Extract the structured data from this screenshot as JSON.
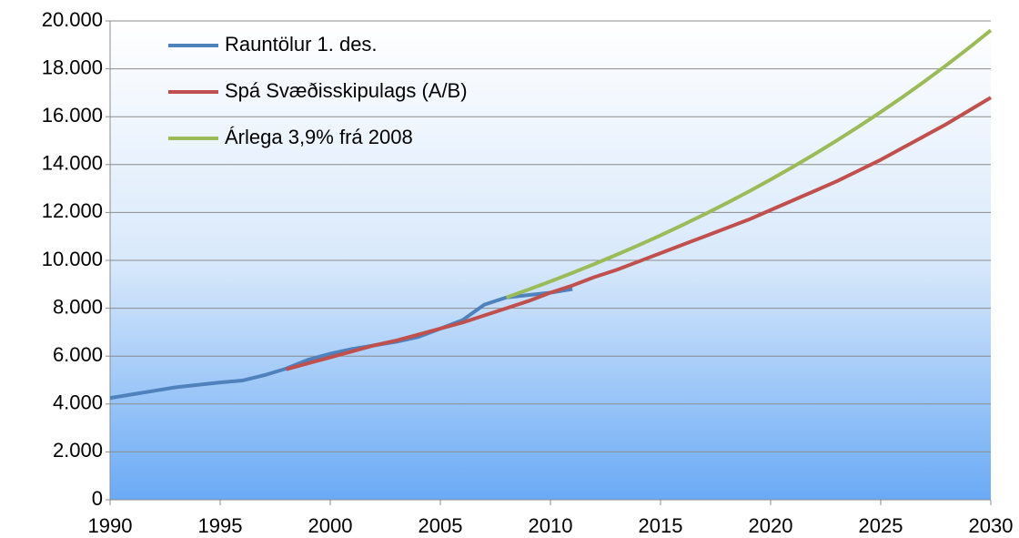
{
  "chart_data": {
    "type": "line",
    "x": [
      1990,
      1991,
      1992,
      1993,
      1994,
      1995,
      1996,
      1997,
      1998,
      1999,
      2000,
      2001,
      2002,
      2003,
      2004,
      2005,
      2006,
      2007,
      2008,
      2009,
      2010,
      2011,
      2012,
      2013,
      2014,
      2015,
      2016,
      2017,
      2018,
      2019,
      2020,
      2021,
      2022,
      2023,
      2024,
      2025,
      2026,
      2027,
      2028,
      2029,
      2030
    ],
    "series": [
      {
        "name": "Rauntölur 1. des.",
        "color": "#4f81bd",
        "values": [
          4250,
          4400,
          4550,
          4700,
          4800,
          4900,
          4980,
          5200,
          5480,
          5850,
          6100,
          6300,
          6450,
          6600,
          6800,
          7150,
          7500,
          8150,
          8450,
          8550,
          8650,
          8800,
          null,
          null,
          null,
          null,
          null,
          null,
          null,
          null,
          null,
          null,
          null,
          null,
          null,
          null,
          null,
          null,
          null,
          null,
          null
        ]
      },
      {
        "name": "Spá Svæðisskipulags (A/B)",
        "color": "#c0504d",
        "values": [
          null,
          null,
          null,
          null,
          null,
          null,
          null,
          null,
          5450,
          5700,
          5950,
          6200,
          6450,
          6650,
          6900,
          7150,
          7400,
          7700,
          8000,
          8300,
          8650,
          8950,
          9300,
          9600,
          9950,
          10300,
          10650,
          11000,
          11350,
          11700,
          12100,
          12500,
          12900,
          13300,
          13750,
          14200,
          14700,
          15200,
          15700,
          16250,
          16800
        ]
      },
      {
        "name": "Árlega 3,9% frá 2008",
        "color": "#9bbb59",
        "values": [
          null,
          null,
          null,
          null,
          null,
          null,
          null,
          null,
          null,
          null,
          null,
          null,
          null,
          null,
          null,
          null,
          null,
          null,
          8450,
          8780,
          9122,
          9478,
          9848,
          10232,
          10631,
          11045,
          11476,
          11924,
          12389,
          12872,
          13374,
          13896,
          14438,
          15001,
          15586,
          16194,
          16825,
          17481,
          18163,
          18871,
          19607
        ]
      }
    ],
    "xlim": [
      1990,
      2030
    ],
    "xticks": [
      1990,
      1995,
      2000,
      2005,
      2010,
      2015,
      2020,
      2025,
      2030
    ],
    "ylim": [
      0,
      20000
    ],
    "yticks": [
      0,
      {
        "value": 2000,
        "label": "2.000"
      },
      {
        "value": 4000,
        "label": "4.000"
      },
      {
        "value": 6000,
        "label": "6.000"
      },
      {
        "value": 8000,
        "label": "8.000"
      },
      {
        "value": 10000,
        "label": "10.000"
      },
      {
        "value": 12000,
        "label": "12.000"
      },
      {
        "value": 14000,
        "label": "14.000"
      },
      {
        "value": 16000,
        "label": "16.000"
      },
      {
        "value": 18000,
        "label": "18.000"
      },
      {
        "value": 20000,
        "label": "20.000"
      }
    ],
    "grid": true,
    "legend": "top-left"
  }
}
